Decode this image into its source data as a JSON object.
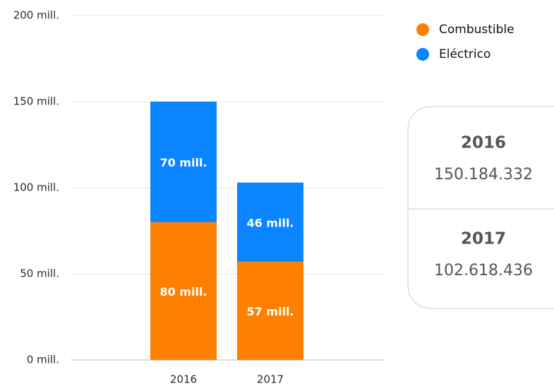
{
  "chart_data": {
    "type": "stacked_bar",
    "categories": [
      "2016",
      "2017"
    ],
    "series": [
      {
        "name": "Combustible",
        "color": "#ff8000",
        "values": [
          80,
          57
        ],
        "value_labels": [
          "80 mill.",
          "57 mill."
        ]
      },
      {
        "name": "Eléctrico",
        "color": "#0a84ff",
        "values": [
          70,
          46
        ],
        "value_labels": [
          "70 mill.",
          "46 mill."
        ]
      }
    ],
    "ylim": [
      0,
      200
    ],
    "yticks": [
      {
        "value": 0,
        "label": "0 mill."
      },
      {
        "value": 50,
        "label": "50 mill."
      },
      {
        "value": 100,
        "label": "100 mill."
      },
      {
        "value": 150,
        "label": "150 mill."
      },
      {
        "value": 200,
        "label": "200 mill."
      }
    ],
    "grid": true
  },
  "summary": [
    {
      "year": "2016",
      "total": "150.184.332"
    },
    {
      "year": "2017",
      "total": "102.618.436"
    }
  ]
}
